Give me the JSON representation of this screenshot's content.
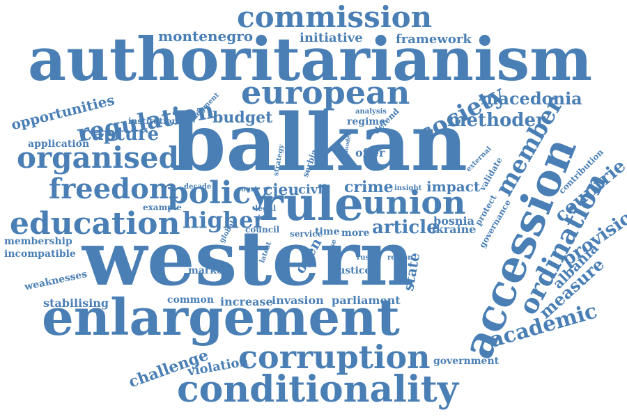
{
  "color": "#4a7fb5",
  "words": [
    {
      "text": "commission"
    },
    {
      "text": "montenegro"
    },
    {
      "text": "initiative"
    },
    {
      "text": "framework"
    },
    {
      "text": "authoritarianism"
    },
    {
      "text": "opportunities"
    },
    {
      "text": "judgment"
    },
    {
      "text": "european"
    },
    {
      "text": "macedonia"
    },
    {
      "text": "regulation"
    },
    {
      "text": "society"
    },
    {
      "text": "institution"
    },
    {
      "text": "budget"
    },
    {
      "text": "analysis"
    },
    {
      "text": "regime"
    },
    {
      "text": "defend"
    },
    {
      "text": "methoder"
    },
    {
      "text": "capture"
    },
    {
      "text": "application"
    },
    {
      "text": "organised"
    },
    {
      "text": "balkan"
    },
    {
      "text": "strategy"
    },
    {
      "text": "serbia"
    },
    {
      "text": "model"
    },
    {
      "text": "offer"
    },
    {
      "text": "external"
    },
    {
      "text": "validate"
    },
    {
      "text": "member"
    },
    {
      "text": "accession"
    },
    {
      "text": "contribution"
    },
    {
      "text": "countrie"
    },
    {
      "text": "freedom"
    },
    {
      "text": "policy"
    },
    {
      "text": "decade"
    },
    {
      "text": "court"
    },
    {
      "text": "cjeu"
    },
    {
      "text": "civil"
    },
    {
      "text": "crime"
    },
    {
      "text": "insight"
    },
    {
      "text": "impact"
    },
    {
      "text": "rule"
    },
    {
      "text": "union"
    },
    {
      "text": "protect"
    },
    {
      "text": "governance"
    },
    {
      "text": "example"
    },
    {
      "text": "legal"
    },
    {
      "text": "bosnia"
    },
    {
      "text": "education"
    },
    {
      "text": "higher"
    },
    {
      "text": "shift"
    },
    {
      "text": "article"
    },
    {
      "text": "ukraine"
    },
    {
      "text": "council"
    },
    {
      "text": "service"
    },
    {
      "text": "time"
    },
    {
      "text": "more"
    },
    {
      "text": "global"
    },
    {
      "text": "membership"
    },
    {
      "text": "incompatible"
    },
    {
      "text": "western"
    },
    {
      "text": "latest"
    },
    {
      "text": "open"
    },
    {
      "text": "case"
    },
    {
      "text": "russia"
    },
    {
      "text": "region"
    },
    {
      "text": "ordination"
    },
    {
      "text": "provision"
    },
    {
      "text": "albania"
    },
    {
      "text": "weaknesses"
    },
    {
      "text": "market"
    },
    {
      "text": "justice"
    },
    {
      "text": "state"
    },
    {
      "text": "measure"
    },
    {
      "text": "stabilising"
    },
    {
      "text": "common"
    },
    {
      "text": "increase"
    },
    {
      "text": "invasion"
    },
    {
      "text": "parliament"
    },
    {
      "text": "enlargement"
    },
    {
      "text": "academic"
    },
    {
      "text": "challenge"
    },
    {
      "text": "violation"
    },
    {
      "text": "corruption"
    },
    {
      "text": "government"
    },
    {
      "text": "conditionality"
    }
  ]
}
